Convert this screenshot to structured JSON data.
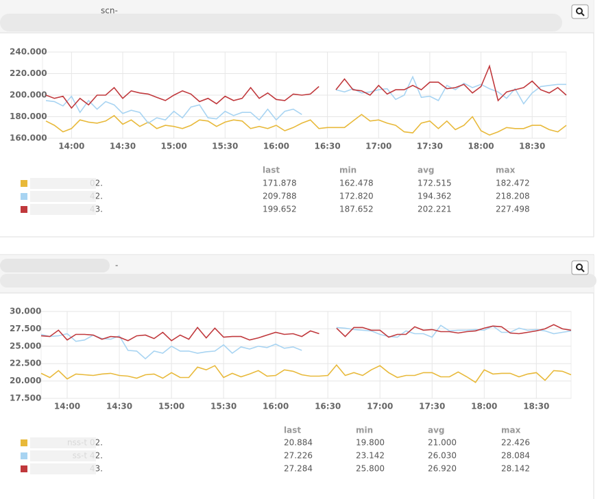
{
  "chart_data": [
    {
      "type": "line",
      "title": "scn-",
      "x": [
        "13:45",
        "13:50",
        "13:55",
        "14:00",
        "14:05",
        "14:10",
        "14:15",
        "14:20",
        "14:25",
        "14:30",
        "14:35",
        "14:40",
        "14:45",
        "14:50",
        "14:55",
        "15:00",
        "15:05",
        "15:10",
        "15:15",
        "15:20",
        "15:25",
        "15:30",
        "15:35",
        "15:40",
        "15:45",
        "15:50",
        "15:55",
        "16:00",
        "16:05",
        "16:10",
        "16:15",
        "16:20",
        "16:25",
        "16:30",
        "16:35",
        "16:40",
        "16:45",
        "16:50",
        "16:55",
        "17:00",
        "17:05",
        "17:10",
        "17:15",
        "17:20",
        "17:25",
        "17:30",
        "17:35",
        "17:40",
        "17:45",
        "17:50",
        "17:55",
        "18:00",
        "18:05",
        "18:10",
        "18:15",
        "18:20",
        "18:25",
        "18:30",
        "18:35",
        "18:40",
        "18:45",
        "18:50"
      ],
      "xlim": [
        "13:43",
        "18:50"
      ],
      "xticks": [
        "14:00",
        "14:30",
        "15:00",
        "15:30",
        "16:00",
        "16:30",
        "17:00",
        "17:30",
        "18:00",
        "18:30"
      ],
      "ylim": [
        160,
        240
      ],
      "yticks": [
        {
          "value": 160,
          "label": "160.000"
        },
        {
          "value": 180,
          "label": "180.000"
        },
        {
          "value": 200,
          "label": "200.000"
        },
        {
          "value": 220,
          "label": "220.000"
        },
        {
          "value": 240,
          "label": "240.000"
        }
      ],
      "grid": true,
      "stats_header": [
        "last",
        "min",
        "avg",
        "max"
      ],
      "series": [
        {
          "name": "02.",
          "color": "#e8b93a",
          "stats": [
            "171.878",
            "162.478",
            "172.515",
            "182.472"
          ],
          "values": [
            176,
            172,
            166,
            169,
            177,
            175,
            174,
            176,
            181,
            173,
            177,
            171,
            175,
            169,
            172,
            171,
            169,
            172,
            177,
            176,
            171,
            175,
            177,
            176,
            169,
            171,
            169,
            172,
            167,
            170,
            174,
            177,
            169,
            170,
            170,
            170,
            176,
            182,
            176,
            177,
            174,
            172,
            166,
            165,
            174,
            176,
            169,
            176,
            168,
            172,
            180,
            167,
            163,
            166,
            170,
            169,
            169,
            172,
            172,
            168,
            166,
            172
          ]
        },
        {
          "name": "42.",
          "color": "#a8d4f2",
          "stats": [
            "209.788",
            "172.820",
            "194.362",
            "218.208"
          ],
          "values": [
            195,
            194,
            190,
            199,
            184,
            195,
            187,
            194,
            191,
            183,
            186,
            184,
            174,
            179,
            177,
            185,
            179,
            189,
            191,
            179,
            178,
            185,
            181,
            184,
            184,
            177,
            187,
            177,
            185,
            187,
            182,
            null,
            null,
            null,
            205,
            203,
            206,
            202,
            203,
            205,
            206,
            196,
            200,
            217,
            198,
            199,
            195,
            209,
            205,
            211,
            207,
            210,
            206,
            203,
            197,
            206,
            192,
            202,
            208,
            209,
            210,
            210
          ]
        },
        {
          "name": "43.",
          "color": "#c0383c",
          "stats": [
            "199.652",
            "187.652",
            "202.221",
            "227.498"
          ],
          "values": [
            200,
            197,
            199,
            188,
            197,
            191,
            200,
            200,
            207,
            197,
            204,
            202,
            201,
            198,
            195,
            200,
            204,
            201,
            194,
            197,
            192,
            199,
            195,
            197,
            207,
            197,
            202,
            196,
            195,
            201,
            200,
            201,
            208,
            null,
            205,
            215,
            205,
            204,
            200,
            209,
            201,
            205,
            205,
            209,
            205,
            212,
            212,
            206,
            207,
            210,
            202,
            208,
            227,
            195,
            203,
            205,
            207,
            213,
            205,
            202,
            207,
            200
          ]
        }
      ]
    },
    {
      "type": "line",
      "title": "-",
      "x": [
        "13:45",
        "13:50",
        "13:55",
        "14:00",
        "14:05",
        "14:10",
        "14:15",
        "14:20",
        "14:25",
        "14:30",
        "14:35",
        "14:40",
        "14:45",
        "14:50",
        "14:55",
        "15:00",
        "15:05",
        "15:10",
        "15:15",
        "15:20",
        "15:25",
        "15:30",
        "15:35",
        "15:40",
        "15:45",
        "15:50",
        "15:55",
        "16:00",
        "16:05",
        "16:10",
        "16:15",
        "16:20",
        "16:25",
        "16:30",
        "16:35",
        "16:40",
        "16:45",
        "16:50",
        "16:55",
        "17:00",
        "17:05",
        "17:10",
        "17:15",
        "17:20",
        "17:25",
        "17:30",
        "17:35",
        "17:40",
        "17:45",
        "17:50",
        "17:55",
        "18:00",
        "18:05",
        "18:10",
        "18:15",
        "18:20",
        "18:25",
        "18:30",
        "18:35",
        "18:40",
        "18:45",
        "18:50"
      ],
      "xlim": [
        "13:45",
        "18:50"
      ],
      "xticks": [
        "14:00",
        "14:30",
        "15:00",
        "15:30",
        "16:00",
        "16:30",
        "17:00",
        "17:30",
        "18:00",
        "18:30"
      ],
      "ylim": [
        17.5,
        30
      ],
      "yticks": [
        {
          "value": 17.5,
          "label": "17.500"
        },
        {
          "value": 20,
          "label": "20.000"
        },
        {
          "value": 22.5,
          "label": "22.500"
        },
        {
          "value": 25,
          "label": "25.000"
        },
        {
          "value": 27.5,
          "label": "27.500"
        },
        {
          "value": 30,
          "label": "30.000"
        }
      ],
      "grid": true,
      "stats_header": [
        "last",
        "min",
        "avg",
        "max"
      ],
      "series": [
        {
          "name": "nss-t 02.",
          "color": "#e8b93a",
          "stats": [
            "20.884",
            "19.800",
            "21.000",
            "22.426"
          ],
          "values": [
            21.1,
            20.5,
            21.5,
            20.3,
            21.0,
            20.9,
            20.8,
            21.0,
            21.1,
            20.8,
            20.7,
            20.4,
            20.9,
            21.0,
            20.4,
            21.2,
            20.5,
            20.5,
            22.0,
            21.6,
            22.2,
            20.5,
            21.1,
            20.6,
            21.0,
            21.5,
            20.7,
            20.8,
            21.6,
            21.4,
            20.9,
            20.7,
            20.7,
            20.8,
            22.3,
            20.8,
            21.2,
            20.8,
            21.6,
            22.2,
            21.2,
            20.5,
            20.8,
            20.8,
            21.2,
            21.2,
            20.6,
            20.6,
            21.3,
            20.6,
            19.8,
            21.6,
            21.0,
            21.1,
            21.1,
            20.6,
            21.0,
            21.2,
            20.1,
            21.5,
            21.4,
            20.9
          ]
        },
        {
          "name": "ss-t 42.",
          "color": "#a8d4f2",
          "stats": [
            "27.226",
            "23.142",
            "26.030",
            "28.084"
          ],
          "values": [
            26.7,
            26.4,
            26.5,
            26.8,
            25.7,
            25.9,
            26.6,
            26.1,
            26.0,
            26.5,
            24.4,
            24.3,
            23.2,
            24.3,
            24.0,
            25.0,
            24.3,
            24.3,
            24.0,
            24.2,
            24.3,
            25.2,
            24.0,
            24.9,
            24.6,
            25.0,
            24.8,
            25.3,
            24.7,
            24.9,
            24.4,
            null,
            null,
            null,
            27.7,
            27.6,
            27.4,
            27.3,
            27.2,
            26.7,
            26.4,
            26.3,
            27.2,
            26.8,
            26.8,
            26.3,
            28.0,
            27.2,
            27.3,
            27.3,
            27.4,
            27.3,
            27.9,
            27.0,
            27.0,
            27.6,
            27.3,
            27.4,
            27.2,
            26.8,
            27.0,
            27.2
          ]
        },
        {
          "name": "43.",
          "color": "#c0383c",
          "stats": [
            "27.284",
            "25.800",
            "26.920",
            "28.142"
          ],
          "values": [
            26.5,
            26.4,
            27.3,
            25.9,
            26.7,
            26.7,
            26.6,
            26.0,
            26.4,
            26.3,
            25.8,
            26.5,
            26.6,
            26.1,
            27.0,
            25.8,
            26.6,
            26.0,
            27.7,
            26.2,
            27.6,
            26.3,
            26.4,
            26.4,
            25.9,
            26.2,
            26.6,
            27.0,
            26.7,
            26.8,
            26.4,
            27.2,
            26.8,
            null,
            27.6,
            26.4,
            27.7,
            27.7,
            27.3,
            27.3,
            26.3,
            26.7,
            26.7,
            27.8,
            27.3,
            27.4,
            27.1,
            27.1,
            26.9,
            27.1,
            27.2,
            27.6,
            27.9,
            27.8,
            26.9,
            26.8,
            27.0,
            27.2,
            27.5,
            28.1,
            27.5,
            27.3
          ]
        }
      ]
    }
  ]
}
